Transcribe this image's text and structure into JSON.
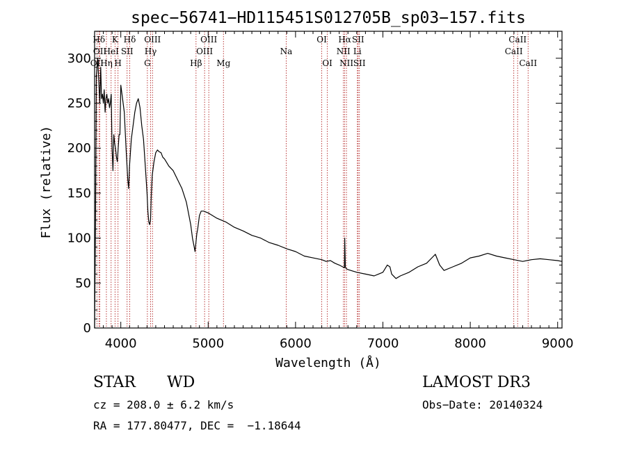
{
  "chart_data": {
    "type": "line",
    "title": "spec−56741−HD115451S012705B_sp03−157.fits",
    "xlabel": "Wavelength (Å)",
    "ylabel": "Flux (relative)",
    "xlim": [
      3700,
      9050
    ],
    "ylim": [
      0,
      330
    ],
    "xticks": [
      4000,
      5000,
      6000,
      7000,
      8000,
      9000
    ],
    "yticks": [
      0,
      50,
      100,
      150,
      200,
      250,
      300
    ],
    "series": [
      {
        "name": "flux",
        "x": [
          3700,
          3710,
          3720,
          3735,
          3750,
          3760,
          3770,
          3780,
          3790,
          3800,
          3810,
          3820,
          3830,
          3840,
          3850,
          3860,
          3870,
          3880,
          3890,
          3900,
          3910,
          3920,
          3930,
          3940,
          3950,
          3960,
          3970,
          3980,
          3990,
          4000,
          4020,
          4040,
          4060,
          4080,
          4090,
          4100,
          4110,
          4120,
          4140,
          4160,
          4180,
          4200,
          4220,
          4240,
          4260,
          4280,
          4300,
          4310,
          4320,
          4330,
          4340,
          4350,
          4360,
          4380,
          4400,
          4420,
          4440,
          4460,
          4480,
          4500,
          4550,
          4600,
          4650,
          4700,
          4750,
          4800,
          4820,
          4840,
          4850,
          4860,
          4870,
          4880,
          4900,
          4920,
          4950,
          5000,
          5050,
          5100,
          5150,
          5200,
          5300,
          5400,
          5500,
          5600,
          5700,
          5800,
          5900,
          6000,
          6100,
          6200,
          6300,
          6350,
          6400,
          6450,
          6500,
          6540,
          6560,
          6563,
          6570,
          6580,
          6600,
          6700,
          6800,
          6900,
          6950,
          7000,
          7050,
          7080,
          7100,
          7150,
          7200,
          7300,
          7400,
          7500,
          7580,
          7600,
          7650,
          7700,
          7800,
          7900,
          8000,
          8100,
          8200,
          8300,
          8400,
          8500,
          8600,
          8700,
          8800,
          8900,
          9000,
          9050
        ],
        "y": [
          0,
          120,
          280,
          300,
          270,
          250,
          290,
          255,
          260,
          250,
          265,
          240,
          255,
          260,
          250,
          255,
          245,
          250,
          260,
          200,
          175,
          215,
          205,
          200,
          190,
          185,
          200,
          215,
          215,
          270,
          255,
          240,
          200,
          165,
          155,
          180,
          195,
          210,
          225,
          240,
          250,
          255,
          245,
          225,
          210,
          180,
          150,
          130,
          118,
          115,
          120,
          150,
          170,
          185,
          195,
          198,
          196,
          195,
          190,
          188,
          180,
          175,
          165,
          155,
          140,
          115,
          100,
          90,
          85,
          95,
          105,
          110,
          125,
          130,
          130,
          128,
          125,
          122,
          120,
          118,
          112,
          108,
          103,
          100,
          95,
          92,
          88,
          85,
          80,
          78,
          76,
          74,
          75,
          72,
          70,
          68,
          67,
          100,
          68,
          66,
          65,
          62,
          60,
          58,
          60,
          62,
          70,
          68,
          60,
          55,
          58,
          62,
          68,
          72,
          80,
          82,
          70,
          64,
          68,
          72,
          78,
          80,
          83,
          80,
          78,
          76,
          74,
          76,
          77,
          76,
          75,
          74
        ]
      }
    ],
    "lines": [
      {
        "name": "O II",
        "label": "OII",
        "x": 3727,
        "row": 2
      },
      {
        "name": "H delta",
        "label": "Hδ",
        "x": 3750,
        "row": 0
      },
      {
        "name": "O II",
        "label": "OII",
        "x": 3760,
        "row": 1
      },
      {
        "name": "H eta",
        "label": "Hη",
        "x": 3835,
        "row": 2
      },
      {
        "name": "He I",
        "label": "HeI",
        "x": 3889,
        "row": 1
      },
      {
        "name": "K",
        "label": "K",
        "x": 3934,
        "row": 0
      },
      {
        "name": "H",
        "label": "H",
        "x": 3968,
        "row": 2
      },
      {
        "name": "S II",
        "label": "SII",
        "x": 4072,
        "row": 1
      },
      {
        "name": "H delta",
        "label": "Hδ",
        "x": 4102,
        "row": 0
      },
      {
        "name": "G band",
        "label": "G",
        "x": 4304,
        "row": 2
      },
      {
        "name": "H gamma",
        "label": "Hγ",
        "x": 4341,
        "row": 1
      },
      {
        "name": "O III",
        "label": "OIII",
        "x": 4363,
        "row": 0
      },
      {
        "name": "H beta",
        "label": "Hβ",
        "x": 4861,
        "row": 2
      },
      {
        "name": "O III",
        "label": "OIII",
        "x": 4959,
        "row": 1
      },
      {
        "name": "O III",
        "label": "OIII",
        "x": 5007,
        "row": 0
      },
      {
        "name": "Mg",
        "label": "Mg",
        "x": 5175,
        "row": 2
      },
      {
        "name": "Na",
        "label": "Na",
        "x": 5893,
        "row": 1
      },
      {
        "name": "O I",
        "label": "OI",
        "x": 6300,
        "row": 0
      },
      {
        "name": "O I",
        "label": "OI",
        "x": 6364,
        "row": 2
      },
      {
        "name": "N II",
        "label": "NII",
        "x": 6548,
        "row": 1
      },
      {
        "name": "H alpha",
        "label": "Hα",
        "x": 6563,
        "row": 0
      },
      {
        "name": "N II",
        "label": "NII",
        "x": 6583,
        "row": 2
      },
      {
        "name": "Li",
        "label": "Li",
        "x": 6708,
        "row": 1
      },
      {
        "name": "S II",
        "label": "SII",
        "x": 6716,
        "row": 0
      },
      {
        "name": "S II",
        "label": "SII",
        "x": 6731,
        "row": 2
      },
      {
        "name": "Ca II",
        "label": "CaII",
        "x": 8498,
        "row": 1
      },
      {
        "name": "Ca II",
        "label": "CaII",
        "x": 8542,
        "row": 0
      },
      {
        "name": "Ca II",
        "label": "CaII",
        "x": 8662,
        "row": 2
      }
    ]
  },
  "info": {
    "class": "STAR",
    "subclass": "WD",
    "survey": "LAMOST DR3",
    "cz": "cz = 208.0 ± 6.2 km/s",
    "obs_date": "Obs−Date: 20140324",
    "coords": "RA = 177.80477, DEC =  −1.18644"
  },
  "colors": {
    "line_marker": "#b22222",
    "spectrum": "#000000"
  }
}
